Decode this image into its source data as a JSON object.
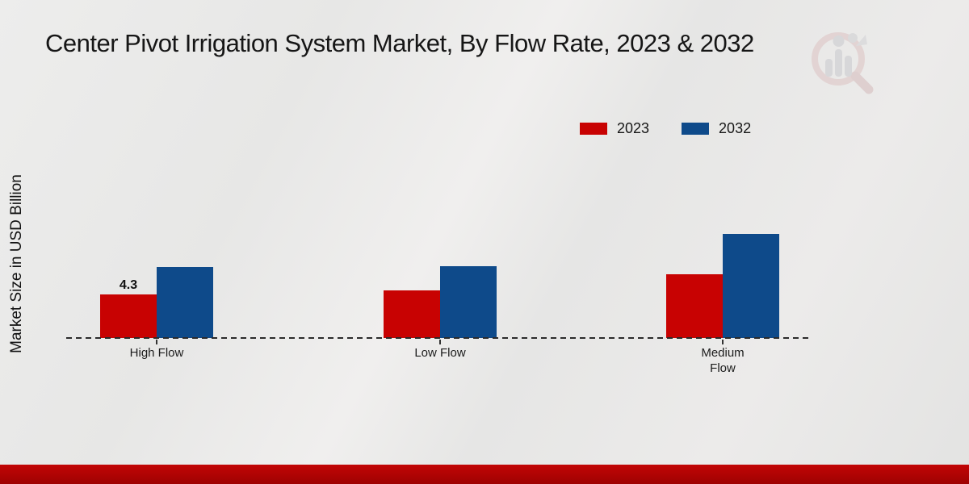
{
  "title": "Center Pivot Irrigation System Market, By Flow Rate, 2023 & 2032",
  "y_axis_label": "Market Size in USD Billion",
  "colors": {
    "series_2023": "#c80202",
    "series_2032": "#0e4a8a",
    "background": "#e8e8e8",
    "footer_stripe": "#b30404",
    "axis_line": "#2b2b2b",
    "text": "#161616"
  },
  "legend": {
    "position": "top-right",
    "items": [
      {
        "label": "2023",
        "color": "#c80202"
      },
      {
        "label": "2032",
        "color": "#0e4a8a"
      }
    ]
  },
  "watermark_icon": "magnifier-bar-chart-logo",
  "chart_data": {
    "type": "bar",
    "title": "Center Pivot Irrigation System Market, By Flow Rate, 2023 & 2032",
    "xlabel": "",
    "ylabel": "Market Size in USD Billion",
    "categories": [
      "High Flow",
      "Low Flow",
      "Medium Flow"
    ],
    "category_display": [
      "High Flow",
      "Low Flow",
      "Medium\nFlow"
    ],
    "series": [
      {
        "name": "2023",
        "color": "#c80202",
        "values": [
          4.3,
          4.7,
          6.3
        ],
        "point_labels": [
          "4.3",
          "",
          ""
        ]
      },
      {
        "name": "2032",
        "color": "#0e4a8a",
        "values": [
          7.0,
          7.1,
          10.3
        ],
        "point_labels": [
          "",
          "",
          ""
        ]
      }
    ],
    "ylim": [
      0,
      12
    ],
    "grid": false,
    "y_axis_ticks_visible": false,
    "baseline_style": "dashed",
    "legend_position": "top-right"
  }
}
